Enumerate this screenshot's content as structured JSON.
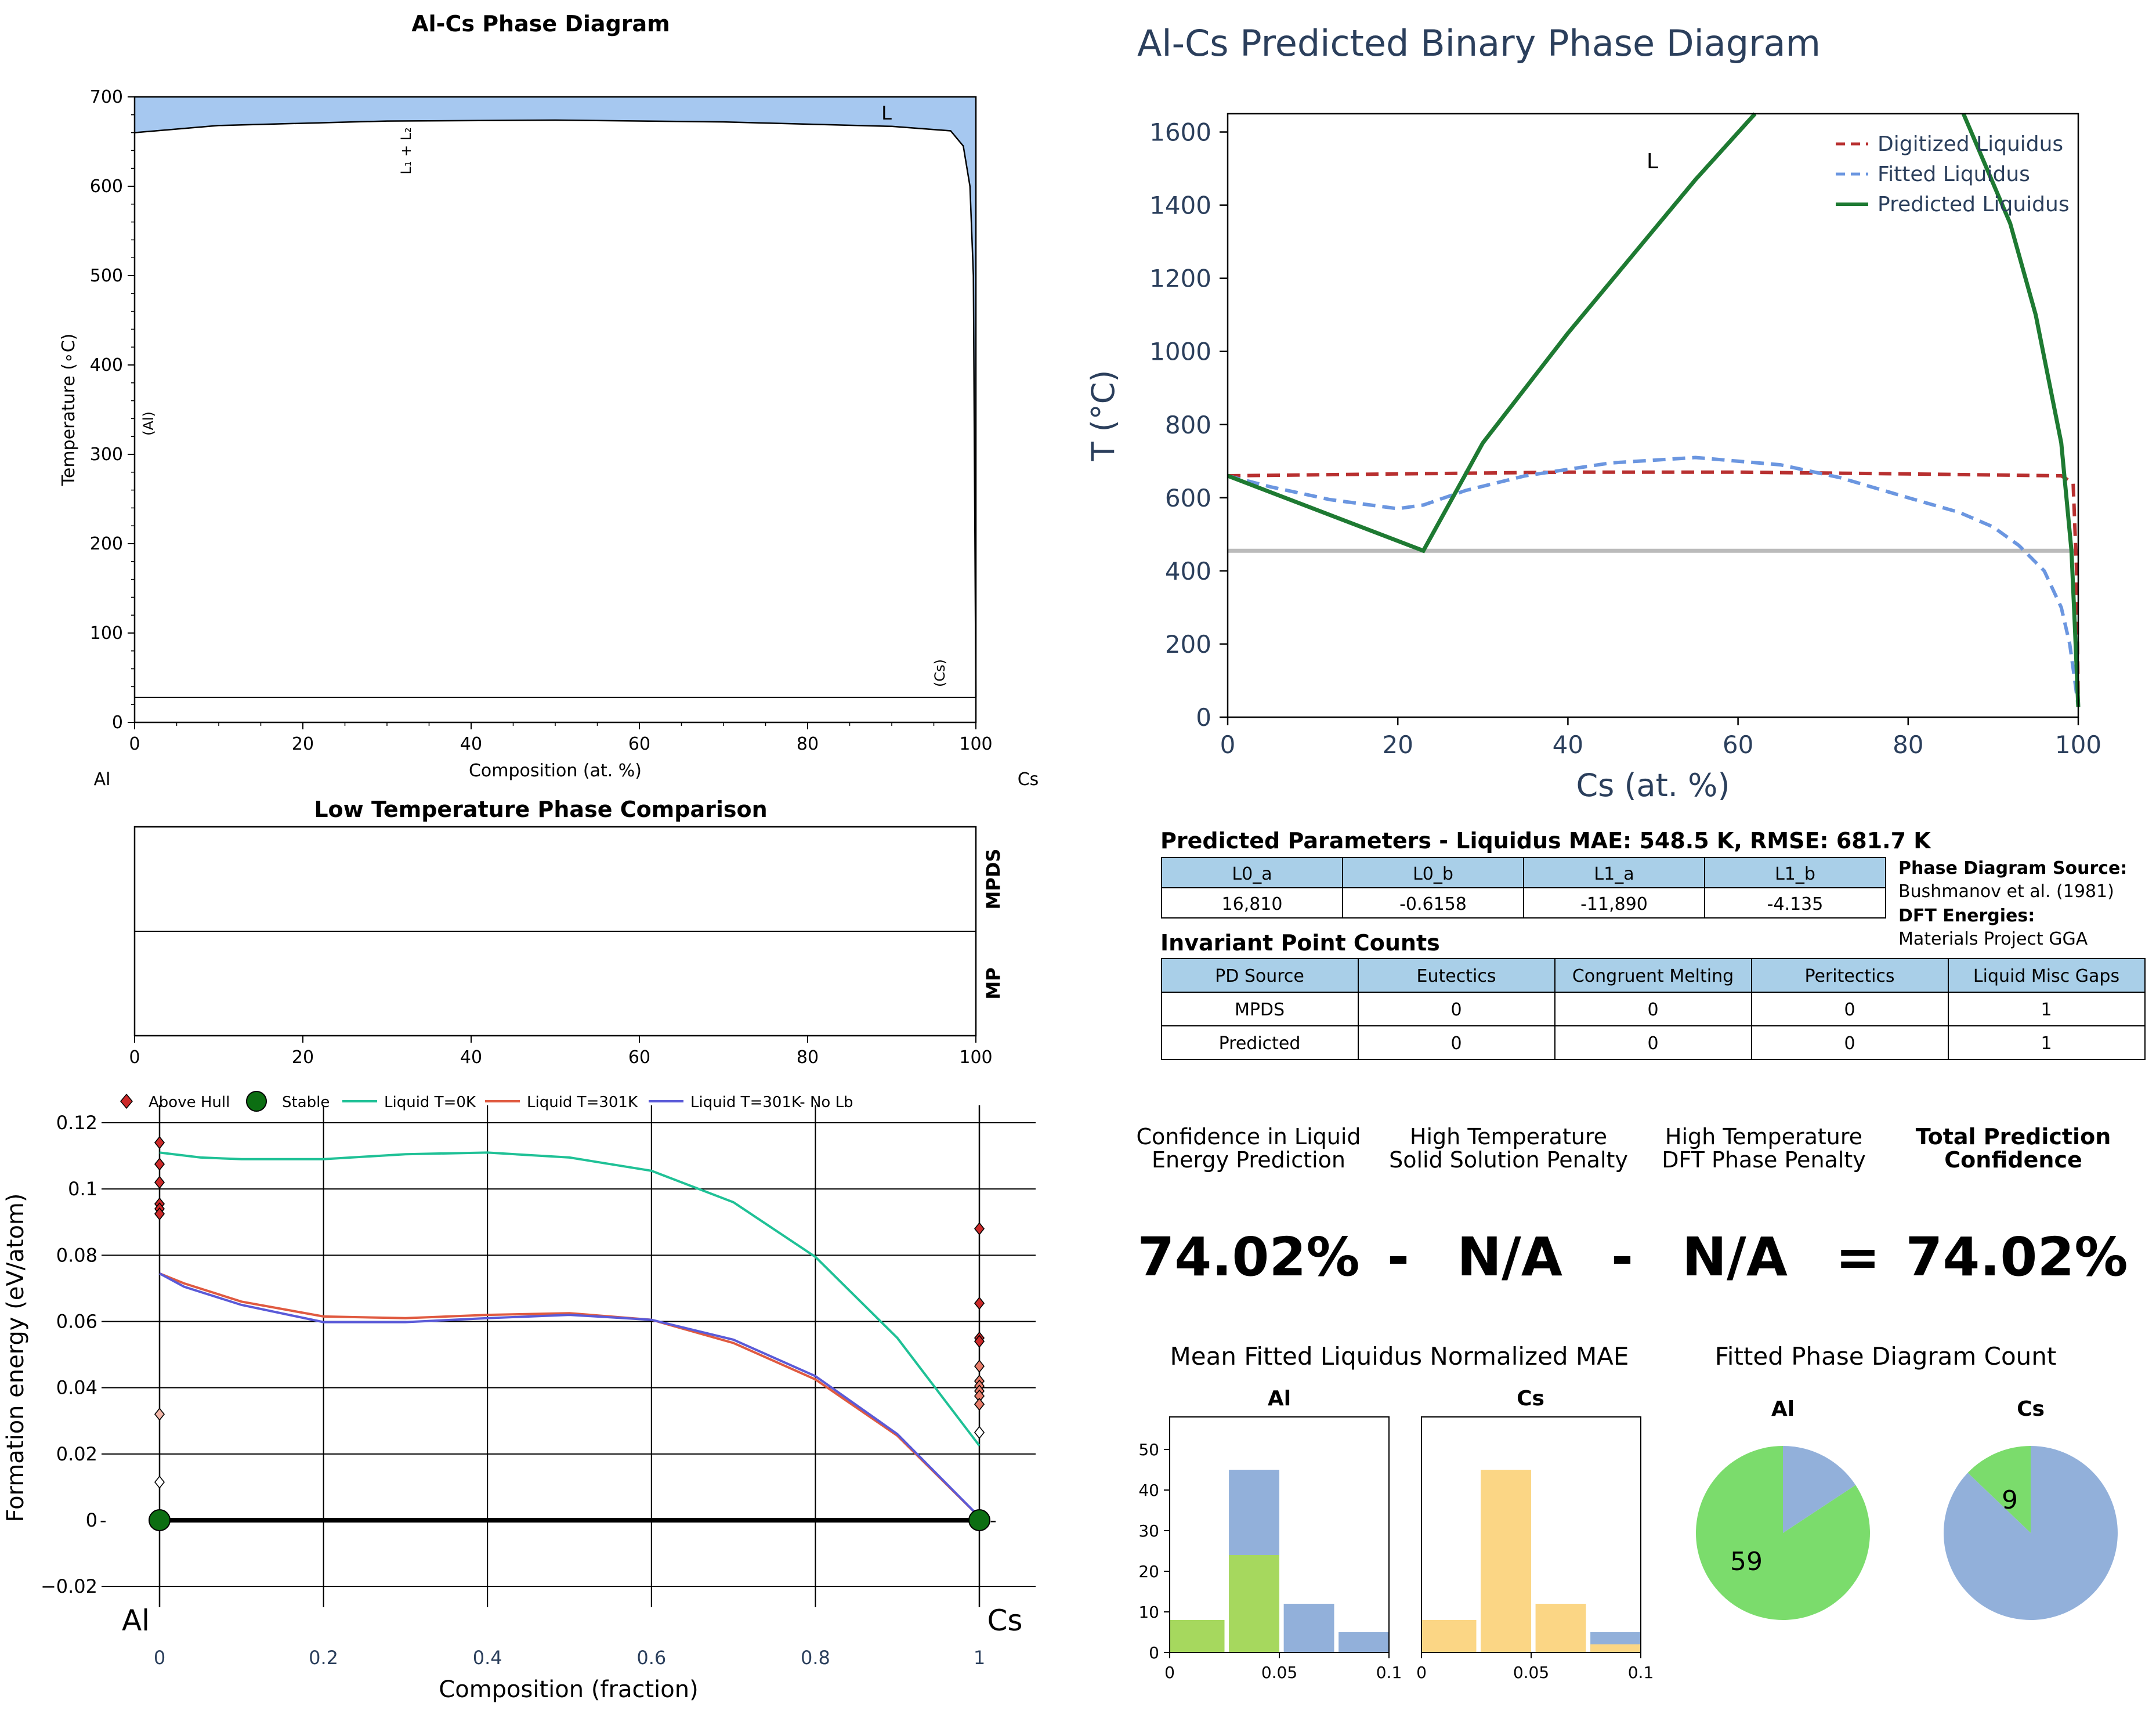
{
  "colors": {
    "navy": "#2b3f5c",
    "liquid_fill": "#a6c8f0",
    "green_curve": "#1e7a32",
    "red_dashed": "#b83030",
    "blue_dashed": "#6b96e0",
    "gray_line": "#bbbbbb",
    "teal": "#1fc196",
    "orange_red": "#e05a40",
    "indigo": "#5a5ad8",
    "stable_green": "#0c6e12",
    "hull_red": "#cc2a2a",
    "table_blue": "#a9cfe8",
    "hist_green": "#a6d85e",
    "hist_blue": "#92b0da",
    "hist_yellow": "#fbd685",
    "pie_green": "#7bdc6c",
    "pie_blue": "#92b0da"
  },
  "phase_diagram": {
    "title": "Al-Cs Phase Diagram",
    "xlabel": "Composition (at. %)",
    "ylabel": "Temperature (∘C)",
    "left_element": "Al",
    "right_element": "Cs",
    "xticks": [
      "0",
      "20",
      "40",
      "60",
      "80",
      "100"
    ],
    "yticks": [
      "0",
      "100",
      "200",
      "300",
      "400",
      "500",
      "600",
      "700"
    ],
    "labels": {
      "liquid": "L",
      "miscibility_gap": "L₁ + L₂",
      "al_solid": "(Al)",
      "cs_solid": "(Cs)"
    }
  },
  "low_temp": {
    "title": "Low Temperature Phase Comparison",
    "rows": [
      "MPDS",
      "MP"
    ],
    "xticks": [
      "0",
      "20",
      "40",
      "60",
      "80",
      "100"
    ]
  },
  "formation_energy": {
    "ylabel": "Formation energy (eV/atom)",
    "xlabel": "Composition (fraction)",
    "left_element": "Al",
    "right_element": "Cs",
    "legend": [
      "Above Hull",
      "Stable",
      "Liquid T=0K",
      "Liquid T=301K",
      "Liquid T=301K- No Lb"
    ],
    "xticks": [
      "0",
      "0.2",
      "0.4",
      "0.6",
      "0.8",
      "1"
    ],
    "yticks": [
      "0.12",
      "0.1",
      "0.08",
      "0.06",
      "0.04",
      "0.02",
      "0",
      "−0.02"
    ]
  },
  "predicted_diagram": {
    "title": "Al-Cs Predicted Binary Phase Diagram",
    "xlabel": "Cs (at. %)",
    "ylabel": "T (°C)",
    "xticks": [
      "0",
      "20",
      "40",
      "60",
      "80",
      "100"
    ],
    "yticks": [
      "0",
      "200",
      "400",
      "600",
      "800",
      "1000",
      "1200",
      "1400",
      "1600"
    ],
    "region_label": "L",
    "legend": [
      "Digitized Liquidus",
      "Fitted Liquidus",
      "Predicted Liquidus"
    ]
  },
  "parameters": {
    "title": "Predicted Parameters - Liquidus MAE: 548.5 K, RMSE: 681.7 K",
    "headers": [
      "L0_a",
      "L0_b",
      "L1_a",
      "L1_b"
    ],
    "values": [
      "16,810",
      "-0.6158",
      "-11,890",
      "-4.135"
    ]
  },
  "source_info": {
    "pd_source_label": "Phase Diagram Source:",
    "pd_source_value": "Bushmanov et al. (1981)",
    "dft_label": "DFT Energies:",
    "dft_value": "Materials Project GGA"
  },
  "invariants": {
    "title": "Invariant Point Counts",
    "headers": [
      "PD Source",
      "Eutectics",
      "Congruent Melting",
      "Peritectics",
      "Liquid Misc Gaps"
    ],
    "rows": [
      [
        "MPDS",
        "0",
        "0",
        "0",
        "1"
      ],
      [
        "Predicted",
        "0",
        "0",
        "0",
        "1"
      ]
    ]
  },
  "confidence": {
    "labels": [
      [
        "Confidence in Liquid",
        "Energy Prediction"
      ],
      [
        "High Temperature",
        "Solid Solution Penalty"
      ],
      [
        "High Temperature",
        "DFT Phase Penalty"
      ],
      [
        "Total Prediction",
        "Confidence"
      ]
    ],
    "values": [
      "74.02%",
      "N/A",
      "N/A",
      "74.02%"
    ],
    "operators": [
      "-",
      "-",
      "="
    ]
  },
  "histograms": {
    "title": "Mean Fitted Liquidus Normalized MAE",
    "yticks": [
      "0",
      "10",
      "20",
      "30",
      "40",
      "50"
    ],
    "xticks": [
      "0",
      "0.05",
      "0.1"
    ],
    "panels": [
      "Al",
      "Cs"
    ]
  },
  "pies": {
    "title": "Fitted Phase Diagram Count",
    "panels": [
      "Al",
      "Cs"
    ],
    "al_label": "59",
    "cs_label": "9"
  },
  "chart_data": [
    {
      "type": "area",
      "name": "Al-Cs Phase Diagram",
      "xlim": [
        0,
        100
      ],
      "ylim": [
        0,
        700
      ],
      "liquidus_boundary": [
        [
          0,
          660
        ],
        [
          10,
          668
        ],
        [
          30,
          673
        ],
        [
          50,
          674
        ],
        [
          70,
          672
        ],
        [
          90,
          667
        ],
        [
          97,
          662
        ],
        [
          98.5,
          645
        ],
        [
          99.3,
          600
        ],
        [
          99.7,
          500
        ],
        [
          100,
          28
        ]
      ],
      "horizontal_line": [
        [
          0,
          28
        ],
        [
          100,
          28
        ]
      ]
    },
    {
      "type": "line",
      "name": "Al-Cs Predicted Binary Phase Diagram",
      "xlim": [
        0,
        100
      ],
      "ylim": [
        0,
        1650
      ],
      "series": [
        {
          "name": "Digitized Liquidus",
          "points": [
            [
              0,
              660
            ],
            [
              20,
              665
            ],
            [
              40,
              670
            ],
            [
              60,
              670
            ],
            [
              80,
              665
            ],
            [
              98,
              660
            ],
            [
              99.4,
              640
            ],
            [
              99.8,
              400
            ],
            [
              100,
              28
            ]
          ]
        },
        {
          "name": "Fitted Liquidus",
          "points": [
            [
              0,
              660
            ],
            [
              5,
              630
            ],
            [
              12,
              595
            ],
            [
              20,
              570
            ],
            [
              23,
              580
            ],
            [
              28,
              620
            ],
            [
              35,
              660
            ],
            [
              45,
              695
            ],
            [
              55,
              710
            ],
            [
              65,
              690
            ],
            [
              72,
              655
            ],
            [
              80,
              600
            ],
            [
              86,
              560
            ],
            [
              90,
              520
            ],
            [
              93,
              470
            ],
            [
              96,
              400
            ],
            [
              98,
              300
            ],
            [
              99,
              200
            ],
            [
              99.6,
              100
            ],
            [
              100,
              28
            ]
          ]
        },
        {
          "name": "Predicted Liquidus",
          "points": [
            [
              0,
              660
            ],
            [
              23,
              455
            ],
            [
              30,
              750
            ],
            [
              40,
              1050
            ],
            [
              50,
              1330
            ],
            [
              55,
              1470
            ],
            [
              62,
              1650
            ]
          ]
        },
        {
          "name": "Predicted Liquidus right",
          "points": [
            [
              86.5,
              1650
            ],
            [
              92,
              1350
            ],
            [
              95,
              1100
            ],
            [
              98,
              750
            ],
            [
              99.2,
              455
            ],
            [
              99.6,
              250
            ],
            [
              100,
              28
            ]
          ]
        },
        {
          "name": "eutectic line",
          "points": [
            [
              0,
              455
            ],
            [
              100,
              455
            ]
          ]
        }
      ]
    },
    {
      "type": "line",
      "name": "Formation energy",
      "xlim": [
        -0.035,
        1.035
      ],
      "ylim": [
        -0.022,
        0.123
      ],
      "series": [
        {
          "name": "Liquid T=0K",
          "points": [
            [
              0,
              0.111
            ],
            [
              0.05,
              0.1095
            ],
            [
              0.1,
              0.109
            ],
            [
              0.2,
              0.109
            ],
            [
              0.3,
              0.1105
            ],
            [
              0.4,
              0.111
            ],
            [
              0.5,
              0.1095
            ],
            [
              0.6,
              0.1055
            ],
            [
              0.7,
              0.096
            ],
            [
              0.8,
              0.0795
            ],
            [
              0.9,
              0.055
            ],
            [
              1,
              0.0225
            ]
          ]
        },
        {
          "name": "Liquid T=301K",
          "points": [
            [
              0,
              0.0745
            ],
            [
              0.03,
              0.0715
            ],
            [
              0.1,
              0.066
            ],
            [
              0.2,
              0.0615
            ],
            [
              0.3,
              0.061
            ],
            [
              0.4,
              0.062
            ],
            [
              0.5,
              0.0625
            ],
            [
              0.6,
              0.0605
            ],
            [
              0.7,
              0.0535
            ],
            [
              0.8,
              0.0425
            ],
            [
              0.9,
              0.0255
            ],
            [
              1,
              0.001
            ]
          ]
        },
        {
          "name": "Liquid T=301K- No Lb",
          "points": [
            [
              0,
              0.0745
            ],
            [
              0.03,
              0.0705
            ],
            [
              0.1,
              0.065
            ],
            [
              0.2,
              0.0598
            ],
            [
              0.3,
              0.0598
            ],
            [
              0.4,
              0.061
            ],
            [
              0.5,
              0.062
            ],
            [
              0.6,
              0.0605
            ],
            [
              0.7,
              0.0545
            ],
            [
              0.8,
              0.0435
            ],
            [
              0.9,
              0.026
            ],
            [
              1,
              0.001
            ]
          ]
        },
        {
          "name": "Stable",
          "points": [
            [
              0,
              0
            ],
            [
              1,
              0
            ]
          ]
        },
        {
          "name": "Above Hull Al",
          "points": [
            [
              0,
              0.114
            ],
            [
              0,
              0.1075
            ],
            [
              0,
              0.102
            ],
            [
              0,
              0.0955
            ],
            [
              0,
              0.094
            ],
            [
              0,
              0.0925
            ],
            [
              0,
              0.032
            ],
            [
              0,
              0.0115
            ]
          ]
        },
        {
          "name": "Above Hull Cs",
          "points": [
            [
              1,
              0.088
            ],
            [
              1,
              0.0655
            ],
            [
              1,
              0.055
            ],
            [
              1,
              0.054
            ],
            [
              1,
              0.0465
            ],
            [
              1,
              0.042
            ],
            [
              1,
              0.0405
            ],
            [
              1,
              0.039
            ],
            [
              1,
              0.0375
            ],
            [
              1,
              0.035
            ],
            [
              1,
              0.0265
            ]
          ]
        }
      ]
    },
    {
      "type": "bar",
      "name": "Al histogram",
      "xlim": [
        0,
        0.1
      ],
      "ylim": [
        0,
        58
      ],
      "series": [
        {
          "name": "green",
          "bars": [
            [
              0,
              0.025,
              8
            ],
            [
              0.027,
              0.05,
              24
            ]
          ]
        },
        {
          "name": "blue",
          "bars": [
            [
              0.027,
              0.05,
              45
            ],
            [
              0.052,
              0.075,
              12
            ],
            [
              0.077,
              0.1,
              5
            ]
          ]
        }
      ]
    },
    {
      "type": "bar",
      "name": "Cs histogram",
      "xlim": [
        0,
        0.1
      ],
      "ylim": [
        0,
        58
      ],
      "series": [
        {
          "name": "yellow",
          "bars": [
            [
              0,
              0.025,
              8
            ],
            [
              0.027,
              0.05,
              45
            ],
            [
              0.052,
              0.075,
              12
            ],
            [
              0.077,
              0.1,
              2
            ]
          ]
        },
        {
          "name": "blue",
          "bars": [
            [
              0.077,
              0.1,
              5
            ]
          ]
        }
      ]
    },
    {
      "type": "pie",
      "name": "Al pie",
      "slices": [
        {
          "name": "green",
          "value": 59
        },
        {
          "name": "blue",
          "value": 11
        }
      ]
    },
    {
      "type": "pie",
      "name": "Cs pie",
      "slices": [
        {
          "name": "green",
          "value": 9
        },
        {
          "name": "blue",
          "value": 61
        }
      ]
    }
  ]
}
